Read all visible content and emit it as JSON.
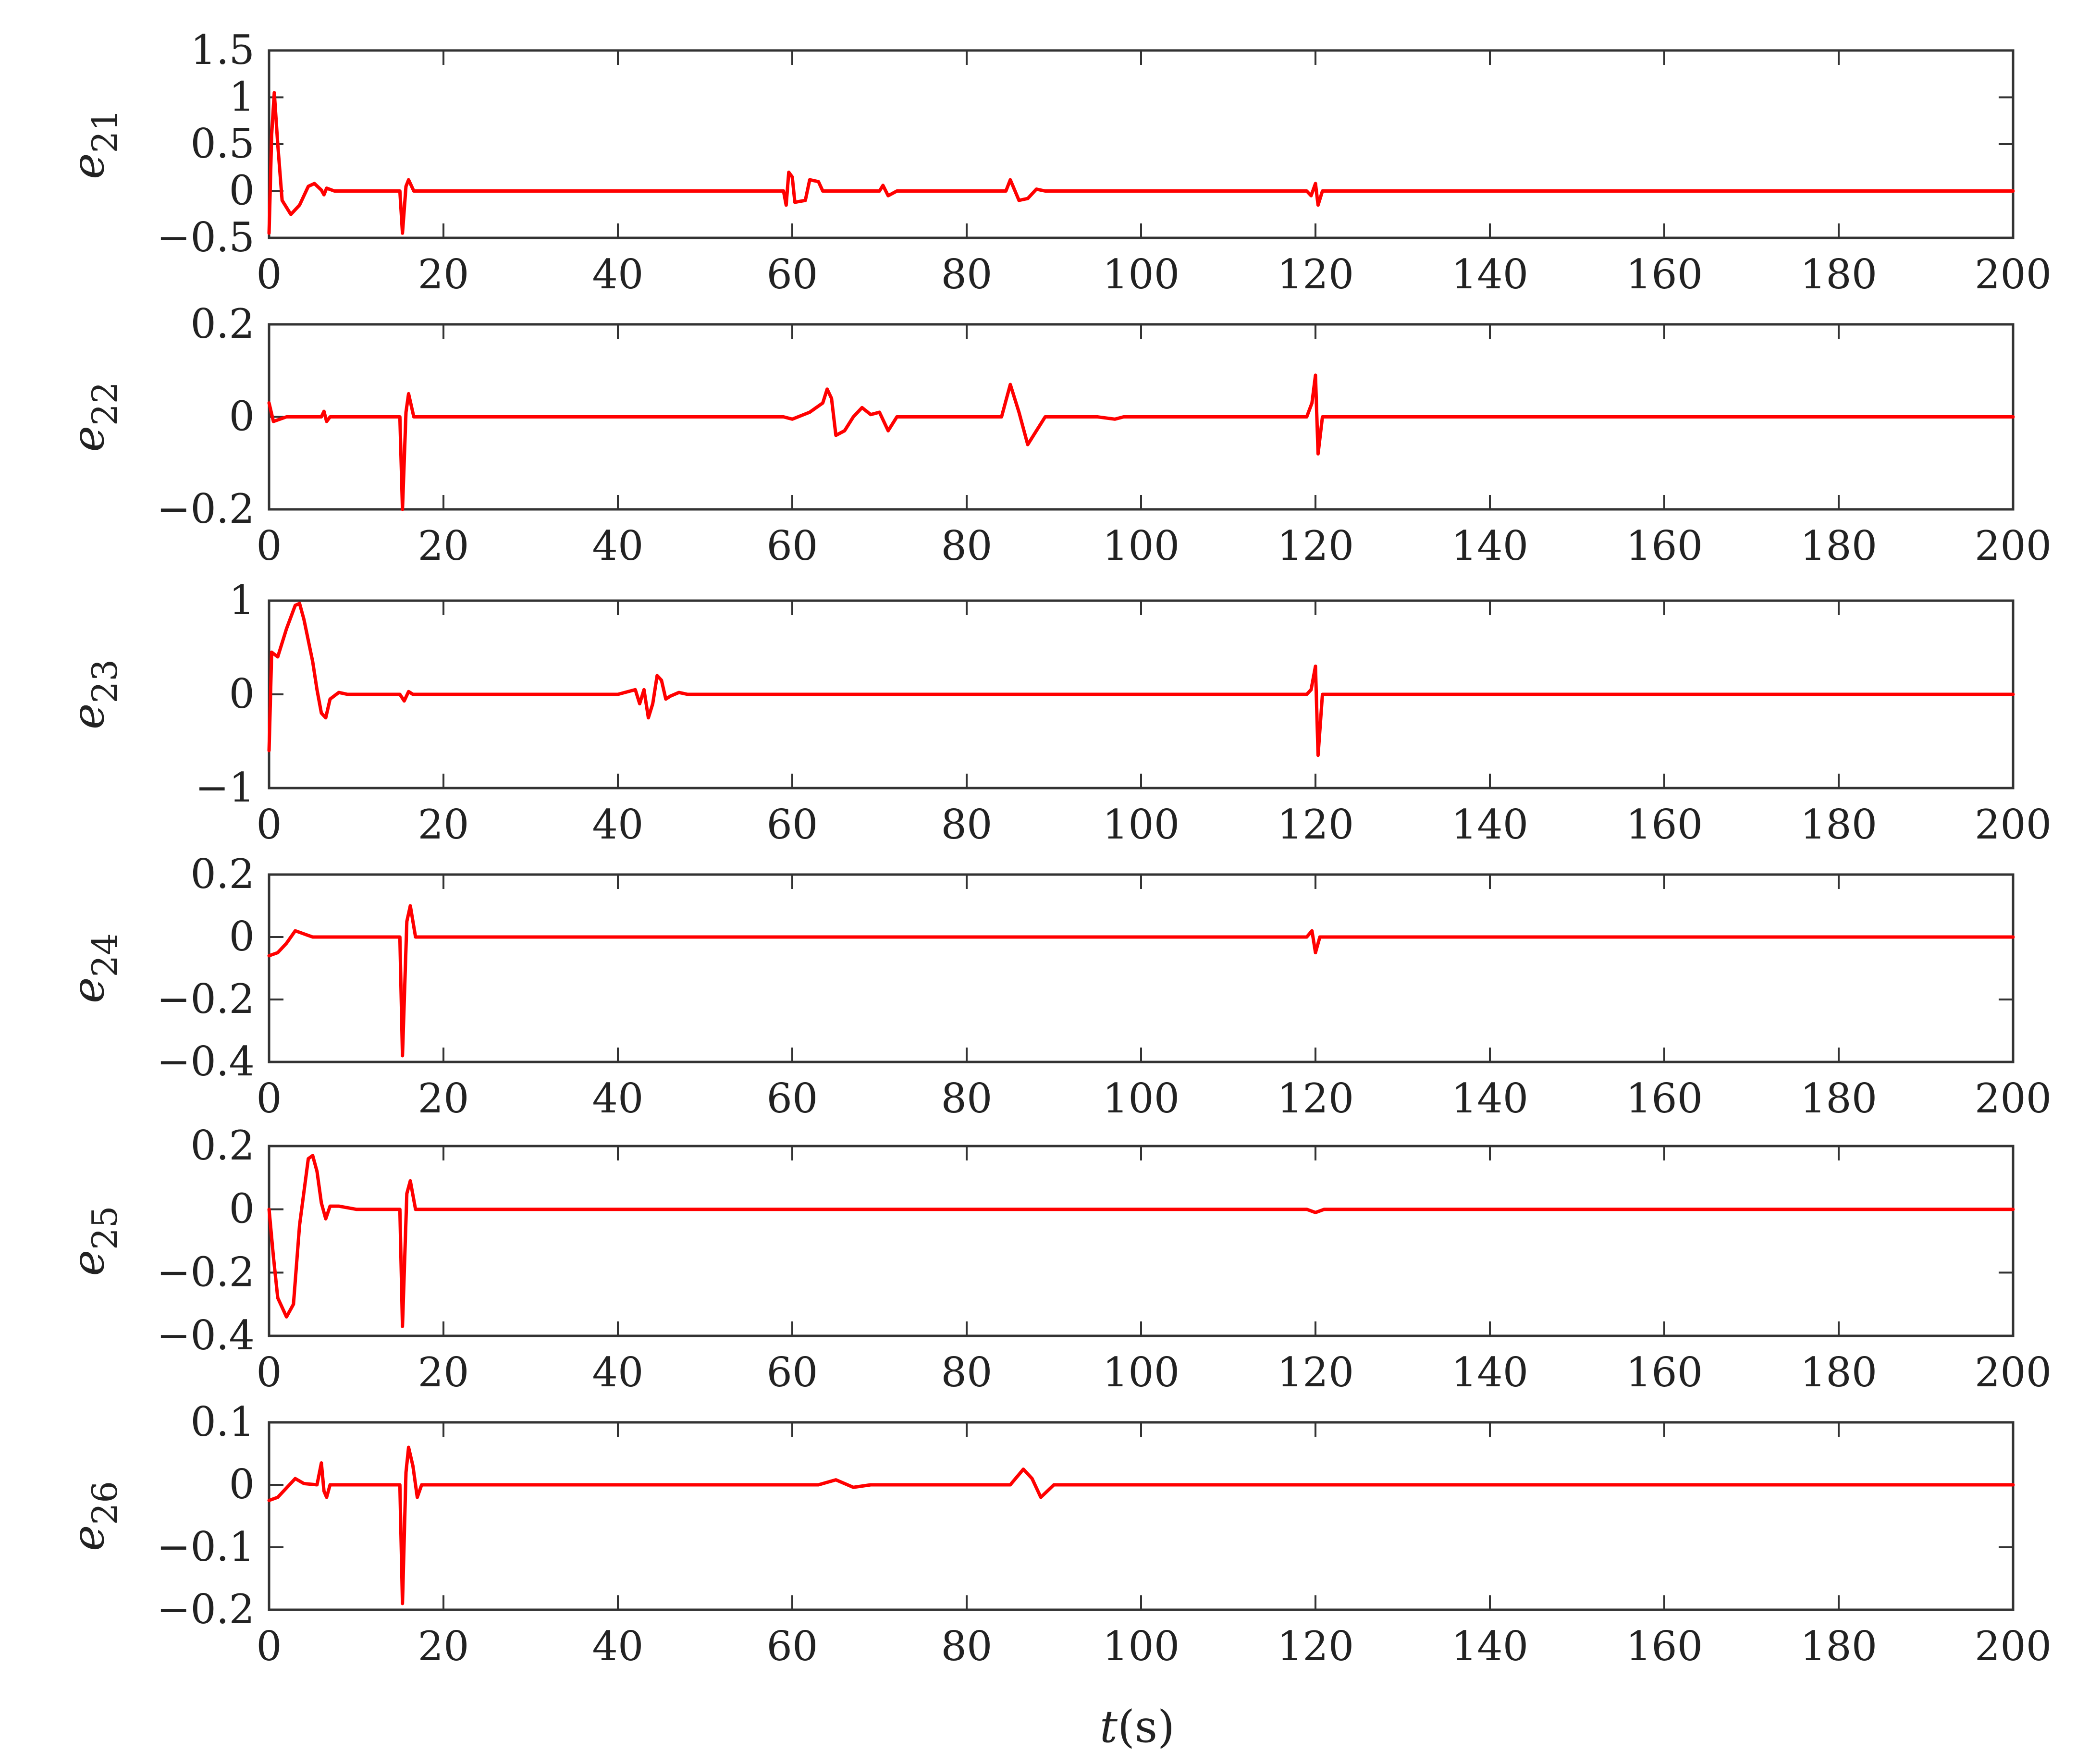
{
  "chart_data": [
    {
      "type": "line",
      "ylabel_base": "e",
      "ylabel_sub": "21",
      "xlim": [
        0,
        200
      ],
      "ylim": [
        -0.5,
        1.5
      ],
      "xticks": [
        "0",
        "20",
        "40",
        "60",
        "80",
        "100",
        "120",
        "140",
        "160",
        "180",
        "200"
      ],
      "yticks": [
        {
          "v": 1.5,
          "label": "1.5"
        },
        {
          "v": 1,
          "label": "1"
        },
        {
          "v": 0.5,
          "label": "0.5"
        },
        {
          "v": 0,
          "label": "0"
        },
        {
          "v": -0.5,
          "label": "−0.5"
        }
      ],
      "series": [
        {
          "color": "#ff0000",
          "points": [
            [
              0,
              -0.45
            ],
            [
              0.3,
              0.6
            ],
            [
              0.6,
              1.05
            ],
            [
              1,
              0.5
            ],
            [
              1.5,
              -0.1
            ],
            [
              2.5,
              -0.25
            ],
            [
              3.5,
              -0.15
            ],
            [
              4.5,
              0.05
            ],
            [
              5.2,
              0.08
            ],
            [
              6,
              0.01
            ],
            [
              6.3,
              -0.04
            ],
            [
              6.6,
              0.03
            ],
            [
              7.5,
              0
            ],
            [
              15,
              0
            ],
            [
              15.3,
              -0.45
            ],
            [
              15.7,
              0.05
            ],
            [
              16,
              0.12
            ],
            [
              16.6,
              0
            ],
            [
              59,
              0
            ],
            [
              59.3,
              -0.15
            ],
            [
              59.6,
              0.2
            ],
            [
              60,
              0.15
            ],
            [
              60.3,
              -0.12
            ],
            [
              61.5,
              -0.1
            ],
            [
              62,
              0.12
            ],
            [
              63,
              0.1
            ],
            [
              63.5,
              0
            ],
            [
              70,
              0
            ],
            [
              70.4,
              0.06
            ],
            [
              71,
              -0.05
            ],
            [
              72,
              0
            ],
            [
              84.5,
              0
            ],
            [
              85,
              0.12
            ],
            [
              86,
              -0.1
            ],
            [
              87,
              -0.08
            ],
            [
              88,
              0.02
            ],
            [
              89,
              0
            ],
            [
              119,
              0
            ],
            [
              119.5,
              -0.05
            ],
            [
              120,
              0.08
            ],
            [
              120.3,
              -0.15
            ],
            [
              120.8,
              0
            ],
            [
              200,
              0
            ]
          ]
        }
      ]
    },
    {
      "type": "line",
      "ylabel_base": "e",
      "ylabel_sub": "22",
      "xlim": [
        0,
        200
      ],
      "ylim": [
        -0.2,
        0.2
      ],
      "xticks": [
        "0",
        "20",
        "40",
        "60",
        "80",
        "100",
        "120",
        "140",
        "160",
        "180",
        "200"
      ],
      "yticks": [
        {
          "v": 0.2,
          "label": "0.2"
        },
        {
          "v": 0,
          "label": "0"
        },
        {
          "v": -0.2,
          "label": "−0.2"
        }
      ],
      "series": [
        {
          "color": "#ff0000",
          "points": [
            [
              0,
              0.03
            ],
            [
              0.5,
              -0.01
            ],
            [
              2,
              0
            ],
            [
              6,
              0
            ],
            [
              6.3,
              0.012
            ],
            [
              6.6,
              -0.01
            ],
            [
              7,
              0
            ],
            [
              15,
              0
            ],
            [
              15.3,
              -0.2
            ],
            [
              15.7,
              0.01
            ],
            [
              16,
              0.05
            ],
            [
              16.6,
              0
            ],
            [
              59,
              0
            ],
            [
              60,
              -0.005
            ],
            [
              62,
              0.01
            ],
            [
              63.5,
              0.03
            ],
            [
              64,
              0.06
            ],
            [
              64.5,
              0.04
            ],
            [
              65,
              -0.04
            ],
            [
              66,
              -0.03
            ],
            [
              67,
              0
            ],
            [
              68,
              0.02
            ],
            [
              69,
              0.005
            ],
            [
              70,
              0.01
            ],
            [
              71,
              -0.03
            ],
            [
              72,
              0
            ],
            [
              84,
              0
            ],
            [
              85,
              0.07
            ],
            [
              86,
              0.01
            ],
            [
              87,
              -0.06
            ],
            [
              88,
              -0.03
            ],
            [
              89,
              0
            ],
            [
              95,
              0
            ],
            [
              97,
              -0.005
            ],
            [
              98,
              0
            ],
            [
              119,
              0
            ],
            [
              119.6,
              0.03
            ],
            [
              120,
              0.09
            ],
            [
              120.3,
              -0.08
            ],
            [
              120.8,
              0
            ],
            [
              200,
              0
            ]
          ]
        }
      ]
    },
    {
      "type": "line",
      "ylabel_base": "e",
      "ylabel_sub": "23",
      "xlim": [
        0,
        200
      ],
      "ylim": [
        -1,
        1
      ],
      "xticks": [
        "0",
        "20",
        "40",
        "60",
        "80",
        "100",
        "120",
        "140",
        "160",
        "180",
        "200"
      ],
      "yticks": [
        {
          "v": 1,
          "label": "1"
        },
        {
          "v": 0,
          "label": "0"
        },
        {
          "v": -1,
          "label": "−1"
        }
      ],
      "series": [
        {
          "color": "#ff0000",
          "points": [
            [
              0,
              -0.6
            ],
            [
              0.3,
              0.45
            ],
            [
              1,
              0.4
            ],
            [
              2,
              0.7
            ],
            [
              3,
              0.95
            ],
            [
              3.5,
              0.97
            ],
            [
              4,
              0.8
            ],
            [
              5,
              0.35
            ],
            [
              5.5,
              0.05
            ],
            [
              6,
              -0.2
            ],
            [
              6.5,
              -0.25
            ],
            [
              7,
              -0.05
            ],
            [
              8,
              0.02
            ],
            [
              9,
              0
            ],
            [
              15,
              0
            ],
            [
              15.5,
              -0.07
            ],
            [
              16,
              0.03
            ],
            [
              16.5,
              0
            ],
            [
              40,
              0
            ],
            [
              42,
              0.05
            ],
            [
              42.5,
              -0.1
            ],
            [
              43,
              0.05
            ],
            [
              43.5,
              -0.25
            ],
            [
              44,
              -0.1
            ],
            [
              44.5,
              0.2
            ],
            [
              45,
              0.15
            ],
            [
              45.5,
              -0.05
            ],
            [
              46,
              -0.02
            ],
            [
              47,
              0.02
            ],
            [
              48,
              0
            ],
            [
              119,
              0
            ],
            [
              119.5,
              0.05
            ],
            [
              120,
              0.3
            ],
            [
              120.3,
              -0.65
            ],
            [
              120.8,
              0
            ],
            [
              200,
              0
            ]
          ]
        }
      ]
    },
    {
      "type": "line",
      "ylabel_base": "e",
      "ylabel_sub": "24",
      "xlim": [
        0,
        200
      ],
      "ylim": [
        -0.4,
        0.2
      ],
      "xticks": [
        "0",
        "20",
        "40",
        "60",
        "80",
        "100",
        "120",
        "140",
        "160",
        "180",
        "200"
      ],
      "yticks": [
        {
          "v": 0.2,
          "label": "0.2"
        },
        {
          "v": 0,
          "label": "0"
        },
        {
          "v": -0.2,
          "label": "−0.2"
        },
        {
          "v": -0.4,
          "label": "−0.4"
        }
      ],
      "series": [
        {
          "color": "#ff0000",
          "points": [
            [
              0,
              -0.06
            ],
            [
              1,
              -0.05
            ],
            [
              2,
              -0.02
            ],
            [
              3,
              0.02
            ],
            [
              4,
              0.01
            ],
            [
              5,
              0
            ],
            [
              15,
              0
            ],
            [
              15.3,
              -0.38
            ],
            [
              15.8,
              0.05
            ],
            [
              16.2,
              0.1
            ],
            [
              16.8,
              0
            ],
            [
              119,
              0
            ],
            [
              119.6,
              0.02
            ],
            [
              120,
              -0.05
            ],
            [
              120.5,
              0
            ],
            [
              200,
              0
            ]
          ]
        }
      ]
    },
    {
      "type": "line",
      "ylabel_base": "e",
      "ylabel_sub": "25",
      "xlim": [
        0,
        200
      ],
      "ylim": [
        -0.4,
        0.2
      ],
      "xticks": [
        "0",
        "20",
        "40",
        "60",
        "80",
        "100",
        "120",
        "140",
        "160",
        "180",
        "200"
      ],
      "yticks": [
        {
          "v": 0.2,
          "label": "0.2"
        },
        {
          "v": 0,
          "label": "0"
        },
        {
          "v": -0.2,
          "label": "−0.2"
        },
        {
          "v": -0.4,
          "label": "−0.4"
        }
      ],
      "series": [
        {
          "color": "#ff0000",
          "points": [
            [
              0,
              0
            ],
            [
              0.5,
              -0.15
            ],
            [
              1,
              -0.28
            ],
            [
              2,
              -0.34
            ],
            [
              2.8,
              -0.3
            ],
            [
              3.5,
              -0.05
            ],
            [
              4.5,
              0.16
            ],
            [
              5,
              0.17
            ],
            [
              5.5,
              0.12
            ],
            [
              6,
              0.02
            ],
            [
              6.5,
              -0.03
            ],
            [
              7,
              0.01
            ],
            [
              8,
              0.01
            ],
            [
              10,
              0
            ],
            [
              15,
              0
            ],
            [
              15.3,
              -0.37
            ],
            [
              15.8,
              0.05
            ],
            [
              16.2,
              0.09
            ],
            [
              16.8,
              0
            ],
            [
              119,
              0
            ],
            [
              120,
              -0.01
            ],
            [
              121,
              0
            ],
            [
              200,
              0
            ]
          ]
        }
      ]
    },
    {
      "type": "line",
      "ylabel_base": "e",
      "ylabel_sub": "26",
      "xlim": [
        0,
        200
      ],
      "ylim": [
        -0.2,
        0.1
      ],
      "xticks": [
        "0",
        "20",
        "40",
        "60",
        "80",
        "100",
        "120",
        "140",
        "160",
        "180",
        "200"
      ],
      "yticks": [
        {
          "v": 0.1,
          "label": "0.1"
        },
        {
          "v": 0,
          "label": "0"
        },
        {
          "v": -0.1,
          "label": "−0.1"
        },
        {
          "v": -0.2,
          "label": "−0.2"
        }
      ],
      "series": [
        {
          "color": "#ff0000",
          "points": [
            [
              0,
              -0.025
            ],
            [
              1,
              -0.02
            ],
            [
              2,
              -0.005
            ],
            [
              3,
              0.01
            ],
            [
              4,
              0.002
            ],
            [
              5.5,
              0
            ],
            [
              6,
              0.035
            ],
            [
              6.3,
              -0.01
            ],
            [
              6.6,
              -0.02
            ],
            [
              7,
              0
            ],
            [
              15,
              0
            ],
            [
              15.3,
              -0.19
            ],
            [
              15.7,
              0.02
            ],
            [
              16,
              0.06
            ],
            [
              16.5,
              0.03
            ],
            [
              17,
              -0.02
            ],
            [
              17.5,
              0
            ],
            [
              63,
              0
            ],
            [
              65,
              0.008
            ],
            [
              67,
              -0.004
            ],
            [
              69,
              0
            ],
            [
              85,
              0
            ],
            [
              86.5,
              0.025
            ],
            [
              87.5,
              0.01
            ],
            [
              88.5,
              -0.02
            ],
            [
              90,
              0
            ],
            [
              200,
              0
            ]
          ]
        }
      ]
    }
  ],
  "xlabel_var": "t",
  "xlabel_unit": "(s)"
}
